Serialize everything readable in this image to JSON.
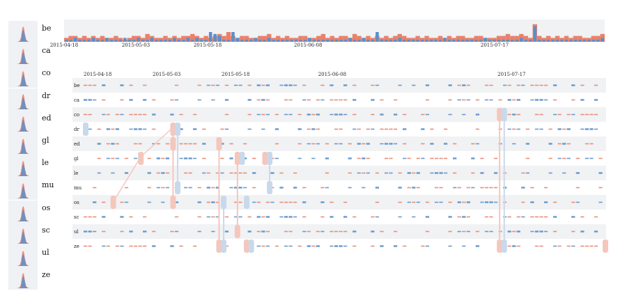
{
  "colors": {
    "series_a": "#e8826b",
    "series_b": "#5b8fcb",
    "row_bg": "#f1f2f4",
    "link_a": "#f4c7bd",
    "link_b": "#c9d9ec"
  },
  "series_labels": [
    "be",
    "ca",
    "co",
    "dr",
    "ed",
    "gl",
    "le",
    "mu",
    "os",
    "sc",
    "ul",
    "ze"
  ],
  "chart_data": [
    {
      "type": "bar",
      "title": "",
      "x_start": "2015-04-18",
      "x_end": "2015-08-09",
      "tick_labels": [
        "2015-04-18",
        "2015-05-03",
        "2015-05-18",
        "2015-06-08",
        "2015-07-17"
      ],
      "tick_dates": [
        "2015-04-18",
        "2015-05-03",
        "2015-05-18",
        "2015-06-08",
        "2015-07-17"
      ],
      "values_a": [
        2,
        3,
        3,
        2,
        3,
        2,
        3,
        2,
        3,
        2,
        2,
        3,
        2,
        1,
        2,
        3,
        3,
        2,
        4,
        3,
        2,
        2,
        3,
        2,
        3,
        2,
        3,
        3,
        4,
        3,
        2,
        3,
        2,
        3,
        4,
        3,
        5,
        3,
        2,
        3,
        3,
        2,
        2,
        3,
        3,
        4,
        2,
        3,
        2,
        3,
        2,
        2,
        3,
        3,
        2,
        2,
        3,
        4,
        2,
        3,
        2,
        3,
        3,
        2,
        4,
        3,
        2,
        3,
        2,
        3,
        2,
        3,
        2,
        3,
        4,
        3,
        2,
        2,
        3,
        2,
        3,
        2,
        2,
        3,
        2,
        3,
        2,
        3,
        3,
        2,
        2,
        3,
        3,
        2,
        2,
        2,
        3,
        3,
        4,
        3,
        3,
        4,
        3,
        2,
        9,
        3,
        2,
        3,
        2,
        3,
        2,
        3,
        2,
        3,
        3,
        2,
        2,
        3,
        3,
        4
      ],
      "values_b": [
        1,
        1,
        2,
        1,
        1,
        1,
        2,
        1,
        1,
        2,
        1,
        1,
        1,
        2,
        1,
        1,
        2,
        1,
        1,
        2,
        1,
        1,
        1,
        1,
        2,
        1,
        1,
        2,
        1,
        2,
        1,
        1,
        5,
        4,
        3,
        1,
        1,
        5,
        2,
        1,
        1,
        1,
        2,
        1,
        1,
        2,
        1,
        1,
        1,
        1,
        1,
        1,
        1,
        1,
        2,
        1,
        1,
        1,
        1,
        1,
        1,
        1,
        1,
        2,
        1,
        1,
        2,
        1,
        1,
        5,
        1,
        1,
        1,
        1,
        2,
        1,
        1,
        1,
        1,
        1,
        1,
        1,
        1,
        1,
        2,
        1,
        1,
        1,
        1,
        1,
        1,
        1,
        1,
        2,
        1,
        1,
        1,
        1,
        1,
        1,
        1,
        2,
        1,
        1,
        8,
        1,
        1,
        1,
        1,
        1,
        1,
        1,
        1,
        1,
        1,
        1,
        1,
        1,
        1,
        2
      ]
    },
    {
      "type": "heatmap",
      "title": "",
      "rows": [
        "be",
        "ca",
        "co",
        "dr",
        "ed",
        "gl",
        "le",
        "mu",
        "os",
        "sc",
        "ul",
        "ze"
      ],
      "x_start": "2015-04-18",
      "x_end": "2015-08-09",
      "tick_labels": [
        "2015-04-18",
        "2015-05-03",
        "2015-05-18",
        "2015-06-08",
        "2015-07-17"
      ],
      "tick_dates": [
        "2015-04-18",
        "2015-05-03",
        "2015-05-18",
        "2015-06-08",
        "2015-07-17"
      ],
      "highlights": [
        {
          "row": "dr",
          "date": "2015-04-18",
          "series": "b"
        },
        {
          "row": "gl",
          "date": "2015-04-30",
          "series": "a"
        },
        {
          "row": "os",
          "date": "2015-04-24",
          "series": "a"
        },
        {
          "row": "dr",
          "date": "2015-05-07",
          "series": "a"
        },
        {
          "row": "dr",
          "date": "2015-05-08",
          "series": "b"
        },
        {
          "row": "ed",
          "date": "2015-05-07",
          "series": "a"
        },
        {
          "row": "mu",
          "date": "2015-05-08",
          "series": "b"
        },
        {
          "row": "os",
          "date": "2015-05-07",
          "series": "a"
        },
        {
          "row": "ed",
          "date": "2015-05-17",
          "series": "a"
        },
        {
          "row": "os",
          "date": "2015-05-18",
          "series": "b"
        },
        {
          "row": "ze",
          "date": "2015-05-17",
          "series": "a"
        },
        {
          "row": "ze",
          "date": "2015-05-18",
          "series": "b"
        },
        {
          "row": "gl",
          "date": "2015-05-21",
          "series": "a"
        },
        {
          "row": "gl",
          "date": "2015-05-22",
          "series": "b"
        },
        {
          "row": "ul",
          "date": "2015-05-21",
          "series": "a"
        },
        {
          "row": "os",
          "date": "2015-05-23",
          "series": "b"
        },
        {
          "row": "ze",
          "date": "2015-05-23",
          "series": "a"
        },
        {
          "row": "ze",
          "date": "2015-05-24",
          "series": "b"
        },
        {
          "row": "gl",
          "date": "2015-05-27",
          "series": "a"
        },
        {
          "row": "gl",
          "date": "2015-05-28",
          "series": "b"
        },
        {
          "row": "mu",
          "date": "2015-05-28",
          "series": "b"
        },
        {
          "row": "co",
          "date": "2015-07-17",
          "series": "a"
        },
        {
          "row": "co",
          "date": "2015-07-18",
          "series": "b"
        },
        {
          "row": "ze",
          "date": "2015-07-17",
          "series": "a"
        },
        {
          "row": "ze",
          "date": "2015-07-18",
          "series": "b"
        },
        {
          "row": "ze",
          "date": "2015-08-09",
          "series": "a"
        }
      ]
    }
  ]
}
